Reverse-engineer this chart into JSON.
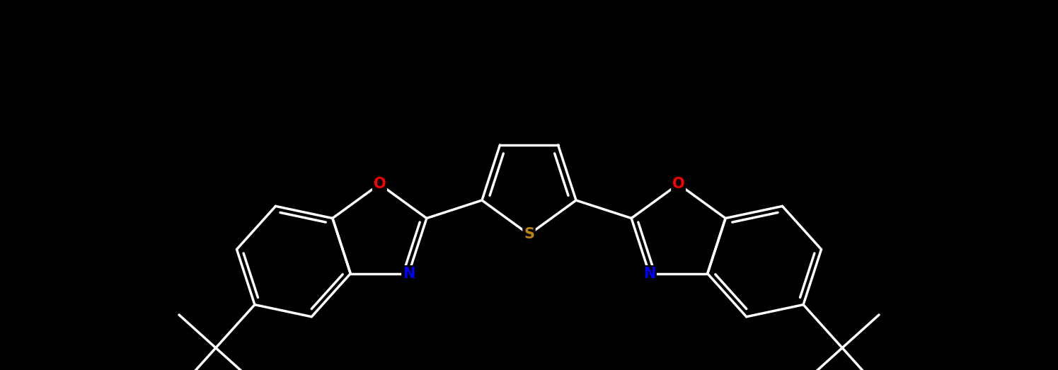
{
  "bg_color": "#000000",
  "bond_color": "#ffffff",
  "N_color": "#0000ff",
  "O_color": "#ff0000",
  "S_color": "#b8860b",
  "lw": 2.5,
  "fs": 15,
  "fig_width": 14.95,
  "fig_height": 5.23,
  "dpi": 100,
  "xlim": [
    -7.5,
    7.5
  ],
  "ylim": [
    -2.8,
    2.8
  ]
}
